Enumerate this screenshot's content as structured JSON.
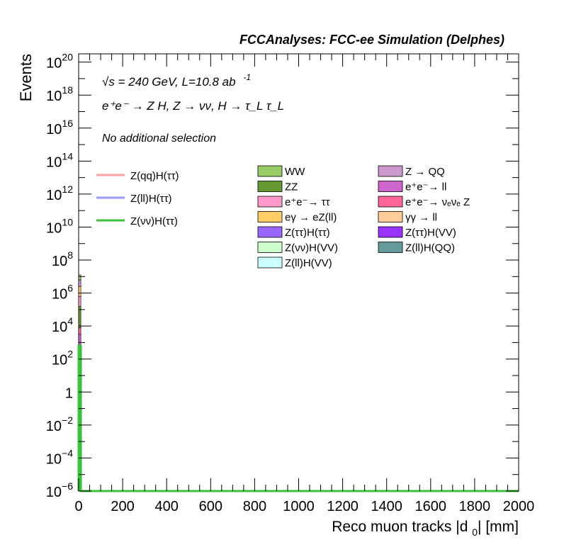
{
  "header": {
    "experiment": "FCCAnalyses: FCC-ee Simulation (Delphes)"
  },
  "annotations": {
    "energy_line": "√s = 240 GeV, L=10.8 ab",
    "energy_exp": "-1",
    "process_line": "e⁺e⁻ → Z H, Z → νν, H → τ_L τ_L",
    "selection": "No additional selection"
  },
  "legend_lines": [
    {
      "label": "Z(qq)H(ττ)",
      "color": "#f4a0a0"
    },
    {
      "label": "Z(ll)H(ττ)",
      "color": "#9a9af4"
    },
    {
      "label": "Z(νν)H(ττ)",
      "color": "#3cc23c"
    }
  ],
  "legend_fills_col1": [
    {
      "label": "WW",
      "color": "#99cc66"
    },
    {
      "label": "ZZ",
      "color": "#669933"
    },
    {
      "label": "e⁺e⁻→ ττ",
      "color": "#ff99cc"
    },
    {
      "label": "eγ → eZ(ll)",
      "color": "#ffcc66"
    },
    {
      "label": "Z(ττ)H(ττ)",
      "color": "#9966ff"
    },
    {
      "label": "Z(νν)H(VV)",
      "color": "#ccffcc"
    },
    {
      "label": "Z(ll)H(VV)",
      "color": "#ccffff"
    }
  ],
  "legend_fills_col2": [
    {
      "label": "Z → QQ",
      "color": "#cc99cc"
    },
    {
      "label": "e⁺e⁻→ ll",
      "color": "#cc66cc"
    },
    {
      "label": "e⁺e⁻→ νₑνₑ Z",
      "color": "#ff6699"
    },
    {
      "label": "γγ → ll",
      "color": "#ffcc99"
    },
    {
      "label": "Z(ττ)H(VV)",
      "color": "#9933ff"
    },
    {
      "label": "Z(ll)H(QQ)",
      "color": "#669999"
    }
  ],
  "chart_data": {
    "type": "bar",
    "xlabel": "Reco muon tracks |d0| [mm]",
    "ylabel": "Events",
    "xlim": [
      0,
      2000
    ],
    "ylim_log10": [
      -6,
      20.5
    ],
    "yscale": "log",
    "x_ticks": [
      "0",
      "200",
      "400",
      "600",
      "800",
      "1000",
      "1200",
      "1400",
      "1600",
      "1800",
      "2000"
    ],
    "y_ticks": [
      {
        "exp": -6,
        "label": "10",
        "sup": "−6"
      },
      {
        "exp": -4,
        "label": "10",
        "sup": "−4"
      },
      {
        "exp": -2,
        "label": "10",
        "sup": "−2"
      },
      {
        "exp": 0,
        "label": "1",
        "sup": ""
      },
      {
        "exp": 2,
        "label": "10",
        "sup": "2"
      },
      {
        "exp": 4,
        "label": "10",
        "sup": "4"
      },
      {
        "exp": 6,
        "label": "10",
        "sup": "6"
      },
      {
        "exp": 8,
        "label": "10",
        "sup": "8"
      },
      {
        "exp": 10,
        "label": "10",
        "sup": "10"
      },
      {
        "exp": 12,
        "label": "10",
        "sup": "12"
      },
      {
        "exp": 14,
        "label": "10",
        "sup": "14"
      },
      {
        "exp": 16,
        "label": "10",
        "sup": "16"
      },
      {
        "exp": 18,
        "label": "10",
        "sup": "18"
      },
      {
        "exp": 20,
        "label": "10",
        "sup": "20"
      }
    ],
    "stack_first_bin": {
      "x_range": [
        0,
        10
      ],
      "segments": [
        {
          "name": "Z(ll)H(QQ)",
          "from": -6.0,
          "to": -3.0,
          "color": "#669999"
        },
        {
          "name": "Z(ττ)H(VV)",
          "from": -3.0,
          "to": -0.2,
          "color": "#9933ff"
        },
        {
          "name": "Z(ττ)H(ττ)",
          "from": -0.2,
          "to": 0.2,
          "color": "#9966ff"
        },
        {
          "name": "e⁺e⁻→ ll",
          "from": 0.2,
          "to": 3.5,
          "color": "#cc66cc"
        },
        {
          "name": "e⁺e⁻→ νₑνₑ Z",
          "from": 3.5,
          "to": 3.9,
          "color": "#ff6699"
        },
        {
          "name": "ZZ",
          "from": 3.9,
          "to": 5.2,
          "color": "#669933"
        },
        {
          "name": "e⁺e⁻→ ττ",
          "from": 5.2,
          "to": 5.8,
          "color": "#ff99cc"
        },
        {
          "name": "eγ → eZ(ll)",
          "from": 5.8,
          "to": 6.4,
          "color": "#ffcc66"
        },
        {
          "name": "Z → QQ",
          "from": 6.4,
          "to": 6.8,
          "color": "#cc99cc"
        },
        {
          "name": "WW",
          "from": 6.8,
          "to": 7.1,
          "color": "#99cc66"
        }
      ]
    },
    "signal_lines": [
      {
        "name": "Z(νν)H(ττ)",
        "color": "#3cc23c",
        "x_edges": [
          0,
          10,
          20,
          2000
        ],
        "log10_values": [
          2.8,
          -6,
          -6
        ]
      }
    ]
  }
}
